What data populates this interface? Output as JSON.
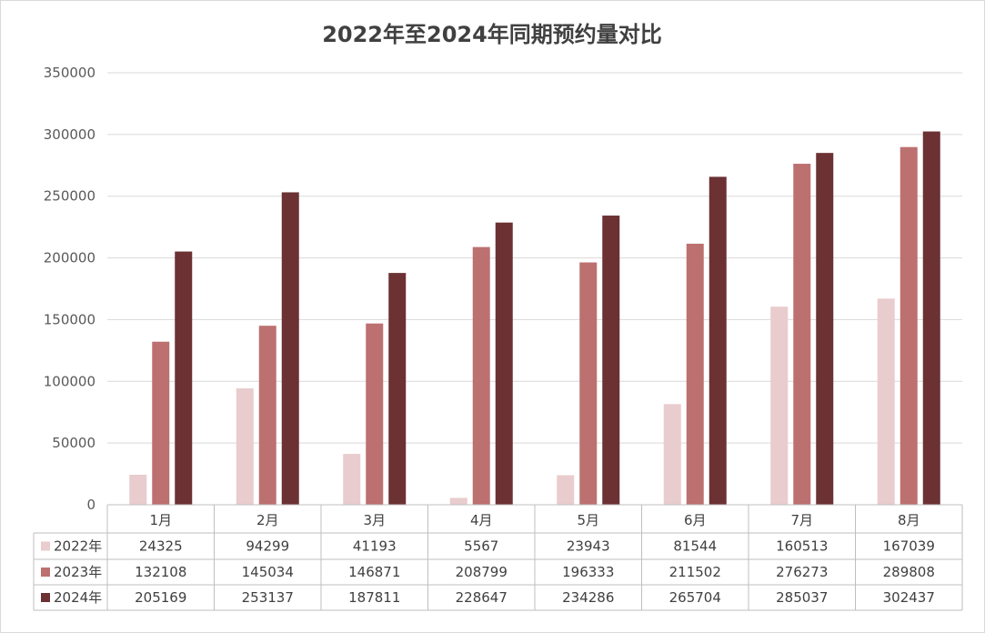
{
  "chart_data": {
    "type": "bar",
    "title": "2022年至2024年同期预约量对比",
    "xlabel": "",
    "ylabel": "",
    "categories": [
      "1月",
      "2月",
      "3月",
      "4月",
      "5月",
      "6月",
      "7月",
      "8月"
    ],
    "series": [
      {
        "name": "2022年",
        "color": "#e9cccd",
        "values": [
          24325,
          94299,
          41193,
          5567,
          23943,
          81544,
          160513,
          167039
        ]
      },
      {
        "name": "2023年",
        "color": "#bd7070",
        "values": [
          132108,
          145034,
          146871,
          208799,
          196333,
          211502,
          276273,
          289808
        ]
      },
      {
        "name": "2024年",
        "color": "#6b3133",
        "values": [
          205169,
          253137,
          187811,
          228647,
          234286,
          265704,
          285037,
          302437
        ]
      }
    ],
    "yticks": [
      "0",
      "50000",
      "100000",
      "150000",
      "200000",
      "250000",
      "300000",
      "350000"
    ],
    "ylim": [
      0,
      350000
    ],
    "grid": true,
    "legend": "data-table"
  }
}
